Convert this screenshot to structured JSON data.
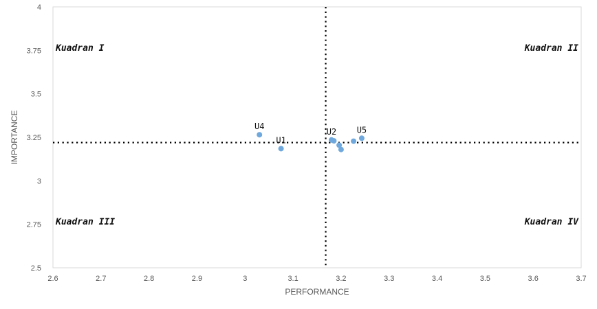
{
  "chart_data": {
    "type": "scatter",
    "xlabel": "PERFORMANCE",
    "ylabel": "IMPORTANCE",
    "xlim": [
      2.6,
      3.7
    ],
    "ylim": [
      2.5,
      4
    ],
    "x_ticks": [
      "2.6",
      "2.7",
      "2.8",
      "2.9",
      "3",
      "3.1",
      "3.2",
      "3.3",
      "3.4",
      "3.5",
      "3.6",
      "3.7"
    ],
    "y_ticks": [
      "2.5",
      "2.75",
      "3",
      "3.25",
      "3.5",
      "3.75",
      "4"
    ],
    "grid": false,
    "point_color": "#6fa8dc",
    "reference_lines": {
      "x": 3.168,
      "y": 3.22
    },
    "quadrants": [
      {
        "label": "Kuadran I",
        "position": "top-left"
      },
      {
        "label": "Kuadran II",
        "position": "top-right"
      },
      {
        "label": "Kuadran III",
        "position": "bottom-left"
      },
      {
        "label": "Kuadran IV",
        "position": "bottom-right"
      }
    ],
    "points": [
      {
        "label": "U4",
        "x": 3.03,
        "y": 3.265
      },
      {
        "label": "U1",
        "x": 3.075,
        "y": 3.185
      },
      {
        "label": "U2",
        "x": 3.18,
        "y": 3.235
      },
      {
        "label": "",
        "x": 3.185,
        "y": 3.23
      },
      {
        "label": "",
        "x": 3.196,
        "y": 3.205
      },
      {
        "label": "",
        "x": 3.2,
        "y": 3.18
      },
      {
        "label": "",
        "x": 3.226,
        "y": 3.228
      },
      {
        "label": "U5",
        "x": 3.243,
        "y": 3.245
      }
    ]
  }
}
